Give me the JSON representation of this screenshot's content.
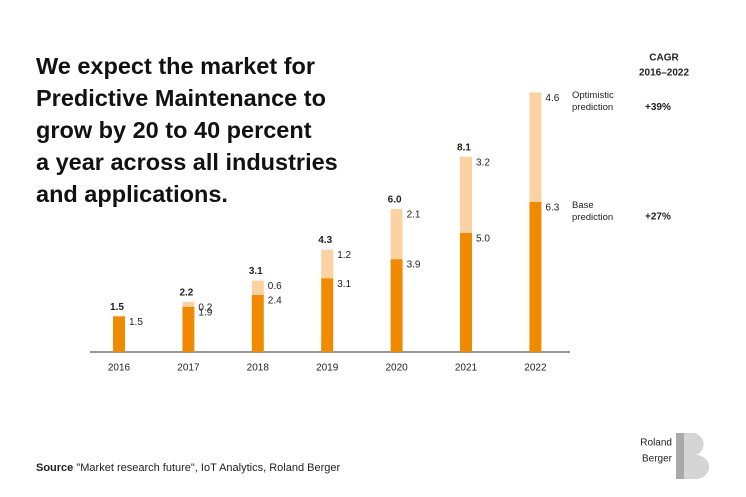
{
  "chart_data": {
    "type": "stacked-bar",
    "title_lines": [
      "We expect the market for",
      "Predictive Maintenance to",
      "grow by 20 to 40 percent",
      "a year across all industries",
      "and applications."
    ],
    "categories": [
      "2016",
      "2017",
      "2018",
      "2019",
      "2020",
      "2021",
      "2022"
    ],
    "series": [
      {
        "name": "Base prediction",
        "color": "#f08a00",
        "cagr": "+27%",
        "cagr_color": "#f08a00",
        "values": [
          1.5,
          1.9,
          2.4,
          3.1,
          3.9,
          5.0,
          6.3
        ],
        "value_labels": [
          "1.5",
          "1.9",
          "2.4",
          "3.1",
          "3.9",
          "5.0",
          "6.3"
        ]
      },
      {
        "name": "Optimistic prediction",
        "color": "#fbd3a3",
        "cagr": "+39%",
        "cagr_color": "#f7c490",
        "values": [
          null,
          0.2,
          0.6,
          1.2,
          2.1,
          3.2,
          4.6
        ],
        "value_labels": [
          null,
          "0.2",
          "0.6",
          "1.2",
          "2.1",
          "3.2",
          "4.6"
        ]
      }
    ],
    "total_labels": [
      "1.5",
      "2.2",
      "3.1",
      "4.3",
      "6.0",
      "8.1",
      null
    ],
    "cagr_header": [
      "CAGR",
      "2016–2022"
    ],
    "ylim": [
      0,
      11
    ],
    "source_label": "Source",
    "source_text": "\"Market research future\", IoT Analytics, Roland Berger",
    "logo": [
      "Roland",
      "Berger"
    ]
  }
}
